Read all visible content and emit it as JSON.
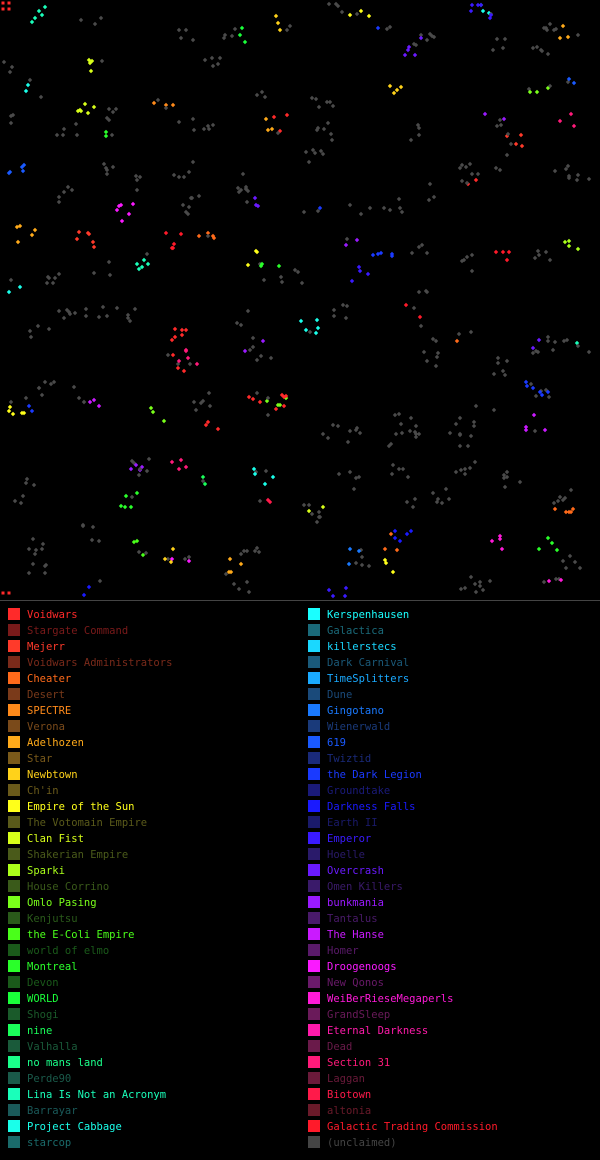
{
  "legend": {
    "left": [
      {
        "label": "Voidwars",
        "color": "#ff2a2a",
        "dim": false
      },
      {
        "label": "Stargate Command",
        "color": "#7a1a1a",
        "dim": true
      },
      {
        "label": "Mejerr",
        "color": "#ff3a2a",
        "dim": false
      },
      {
        "label": "Voidwars Administrators",
        "color": "#7a2a1a",
        "dim": true
      },
      {
        "label": "Cheater",
        "color": "#ff6a1a",
        "dim": false
      },
      {
        "label": "Desert",
        "color": "#7a3a1a",
        "dim": true
      },
      {
        "label": "SPECTRE",
        "color": "#ff8a1a",
        "dim": false
      },
      {
        "label": "Verona",
        "color": "#7a4a1a",
        "dim": true
      },
      {
        "label": "Adelhozen",
        "color": "#ffaa1a",
        "dim": false
      },
      {
        "label": "Star",
        "color": "#7a5a1a",
        "dim": true
      },
      {
        "label": "Newbtown",
        "color": "#ffd21a",
        "dim": false
      },
      {
        "label": "Ch'in",
        "color": "#6a5a1a",
        "dim": true
      },
      {
        "label": "Empire of the Sun",
        "color": "#ffff1a",
        "dim": false
      },
      {
        "label": "The Votomain Empire",
        "color": "#5a5a1a",
        "dim": true
      },
      {
        "label": "Clan Fist",
        "color": "#d8ff1a",
        "dim": false
      },
      {
        "label": "Shakerian Empire",
        "color": "#4a5a1a",
        "dim": true
      },
      {
        "label": "Sparki",
        "color": "#aaff1a",
        "dim": false
      },
      {
        "label": "House Corrino",
        "color": "#3a5a1a",
        "dim": true
      },
      {
        "label": "Omlo Pasing",
        "color": "#7aff1a",
        "dim": false
      },
      {
        "label": "Kenjutsu",
        "color": "#2a5a1a",
        "dim": true
      },
      {
        "label": "the E-Coli Empire",
        "color": "#4aff1a",
        "dim": false
      },
      {
        "label": "world of elmo",
        "color": "#1a5a1a",
        "dim": true
      },
      {
        "label": "Montreal",
        "color": "#2aff2a",
        "dim": false
      },
      {
        "label": "Devon",
        "color": "#1a5a1a",
        "dim": true
      },
      {
        "label": "WORLD",
        "color": "#1aff3a",
        "dim": false
      },
      {
        "label": "Shogi",
        "color": "#1a5a2a",
        "dim": true
      },
      {
        "label": "nine",
        "color": "#1aff5a",
        "dim": false
      },
      {
        "label": "Valhalla",
        "color": "#1a5a3a",
        "dim": true
      },
      {
        "label": "no mans land",
        "color": "#1aff8a",
        "dim": false
      },
      {
        "label": "Perde90",
        "color": "#1a5a4a",
        "dim": true
      },
      {
        "label": "Lina Is Not an Acronym",
        "color": "#1affba",
        "dim": false
      },
      {
        "label": "Barrayar",
        "color": "#1a5a5a",
        "dim": true
      },
      {
        "label": "Project Cabbage",
        "color": "#1affea",
        "dim": false
      },
      {
        "label": "starcop",
        "color": "#1a6a6a",
        "dim": true
      }
    ],
    "right": [
      {
        "label": "Kerspenhausen",
        "color": "#1affff",
        "dim": false
      },
      {
        "label": "Galactica",
        "color": "#1a6a7a",
        "dim": true
      },
      {
        "label": "killerstecs",
        "color": "#1ad8ff",
        "dim": false
      },
      {
        "label": "Dark Carnival",
        "color": "#1a5a7a",
        "dim": true
      },
      {
        "label": "TimeSplitters",
        "color": "#1aaaff",
        "dim": false
      },
      {
        "label": "Dune",
        "color": "#1a4a7a",
        "dim": true
      },
      {
        "label": "Gingotano",
        "color": "#1a7aff",
        "dim": false
      },
      {
        "label": "Wienerwald",
        "color": "#1a3a7a",
        "dim": true
      },
      {
        "label": "619",
        "color": "#1a5aff",
        "dim": false
      },
      {
        "label": "Twiztid",
        "color": "#1a2a7a",
        "dim": true
      },
      {
        "label": "the Dark Legion",
        "color": "#1a3aff",
        "dim": false
      },
      {
        "label": "Groundtake",
        "color": "#1a1a7a",
        "dim": true
      },
      {
        "label": "Darkness Falls",
        "color": "#1a1aff",
        "dim": false
      },
      {
        "label": "Earth II",
        "color": "#1a1a6a",
        "dim": true
      },
      {
        "label": "Emperor",
        "color": "#3a1aff",
        "dim": false
      },
      {
        "label": "Hoelle",
        "color": "#2a1a6a",
        "dim": true
      },
      {
        "label": "Overcrash",
        "color": "#6a1aff",
        "dim": false
      },
      {
        "label": "Omen Killers",
        "color": "#3a1a6a",
        "dim": true
      },
      {
        "label": "bunkmania",
        "color": "#9a1aff",
        "dim": false
      },
      {
        "label": "Tantalus",
        "color": "#4a1a6a",
        "dim": true
      },
      {
        "label": "The Hanse",
        "color": "#ca1aff",
        "dim": false
      },
      {
        "label": "Homer",
        "color": "#5a1a6a",
        "dim": true
      },
      {
        "label": "Droogenoogs",
        "color": "#fa1aff",
        "dim": false
      },
      {
        "label": "New Qonos",
        "color": "#6a1a6a",
        "dim": true
      },
      {
        "label": "WeiBerRieseMegaperls",
        "color": "#ff1ad8",
        "dim": false
      },
      {
        "label": "GrandSleep",
        "color": "#6a1a5a",
        "dim": true
      },
      {
        "label": "Eternal Darkness",
        "color": "#ff1aaa",
        "dim": false
      },
      {
        "label": "Dead",
        "color": "#6a1a4a",
        "dim": true
      },
      {
        "label": "Section 31",
        "color": "#ff1a7a",
        "dim": false
      },
      {
        "label": "Laggan",
        "color": "#6a1a3a",
        "dim": true
      },
      {
        "label": "Biotown",
        "color": "#ff1a4a",
        "dim": false
      },
      {
        "label": "altonia",
        "color": "#6a1a2a",
        "dim": true
      },
      {
        "label": "Galactic Trading Commission",
        "color": "#ff1a2a",
        "dim": false
      },
      {
        "label": "(unclaimed)",
        "color": "#444444",
        "dim": true
      }
    ]
  }
}
